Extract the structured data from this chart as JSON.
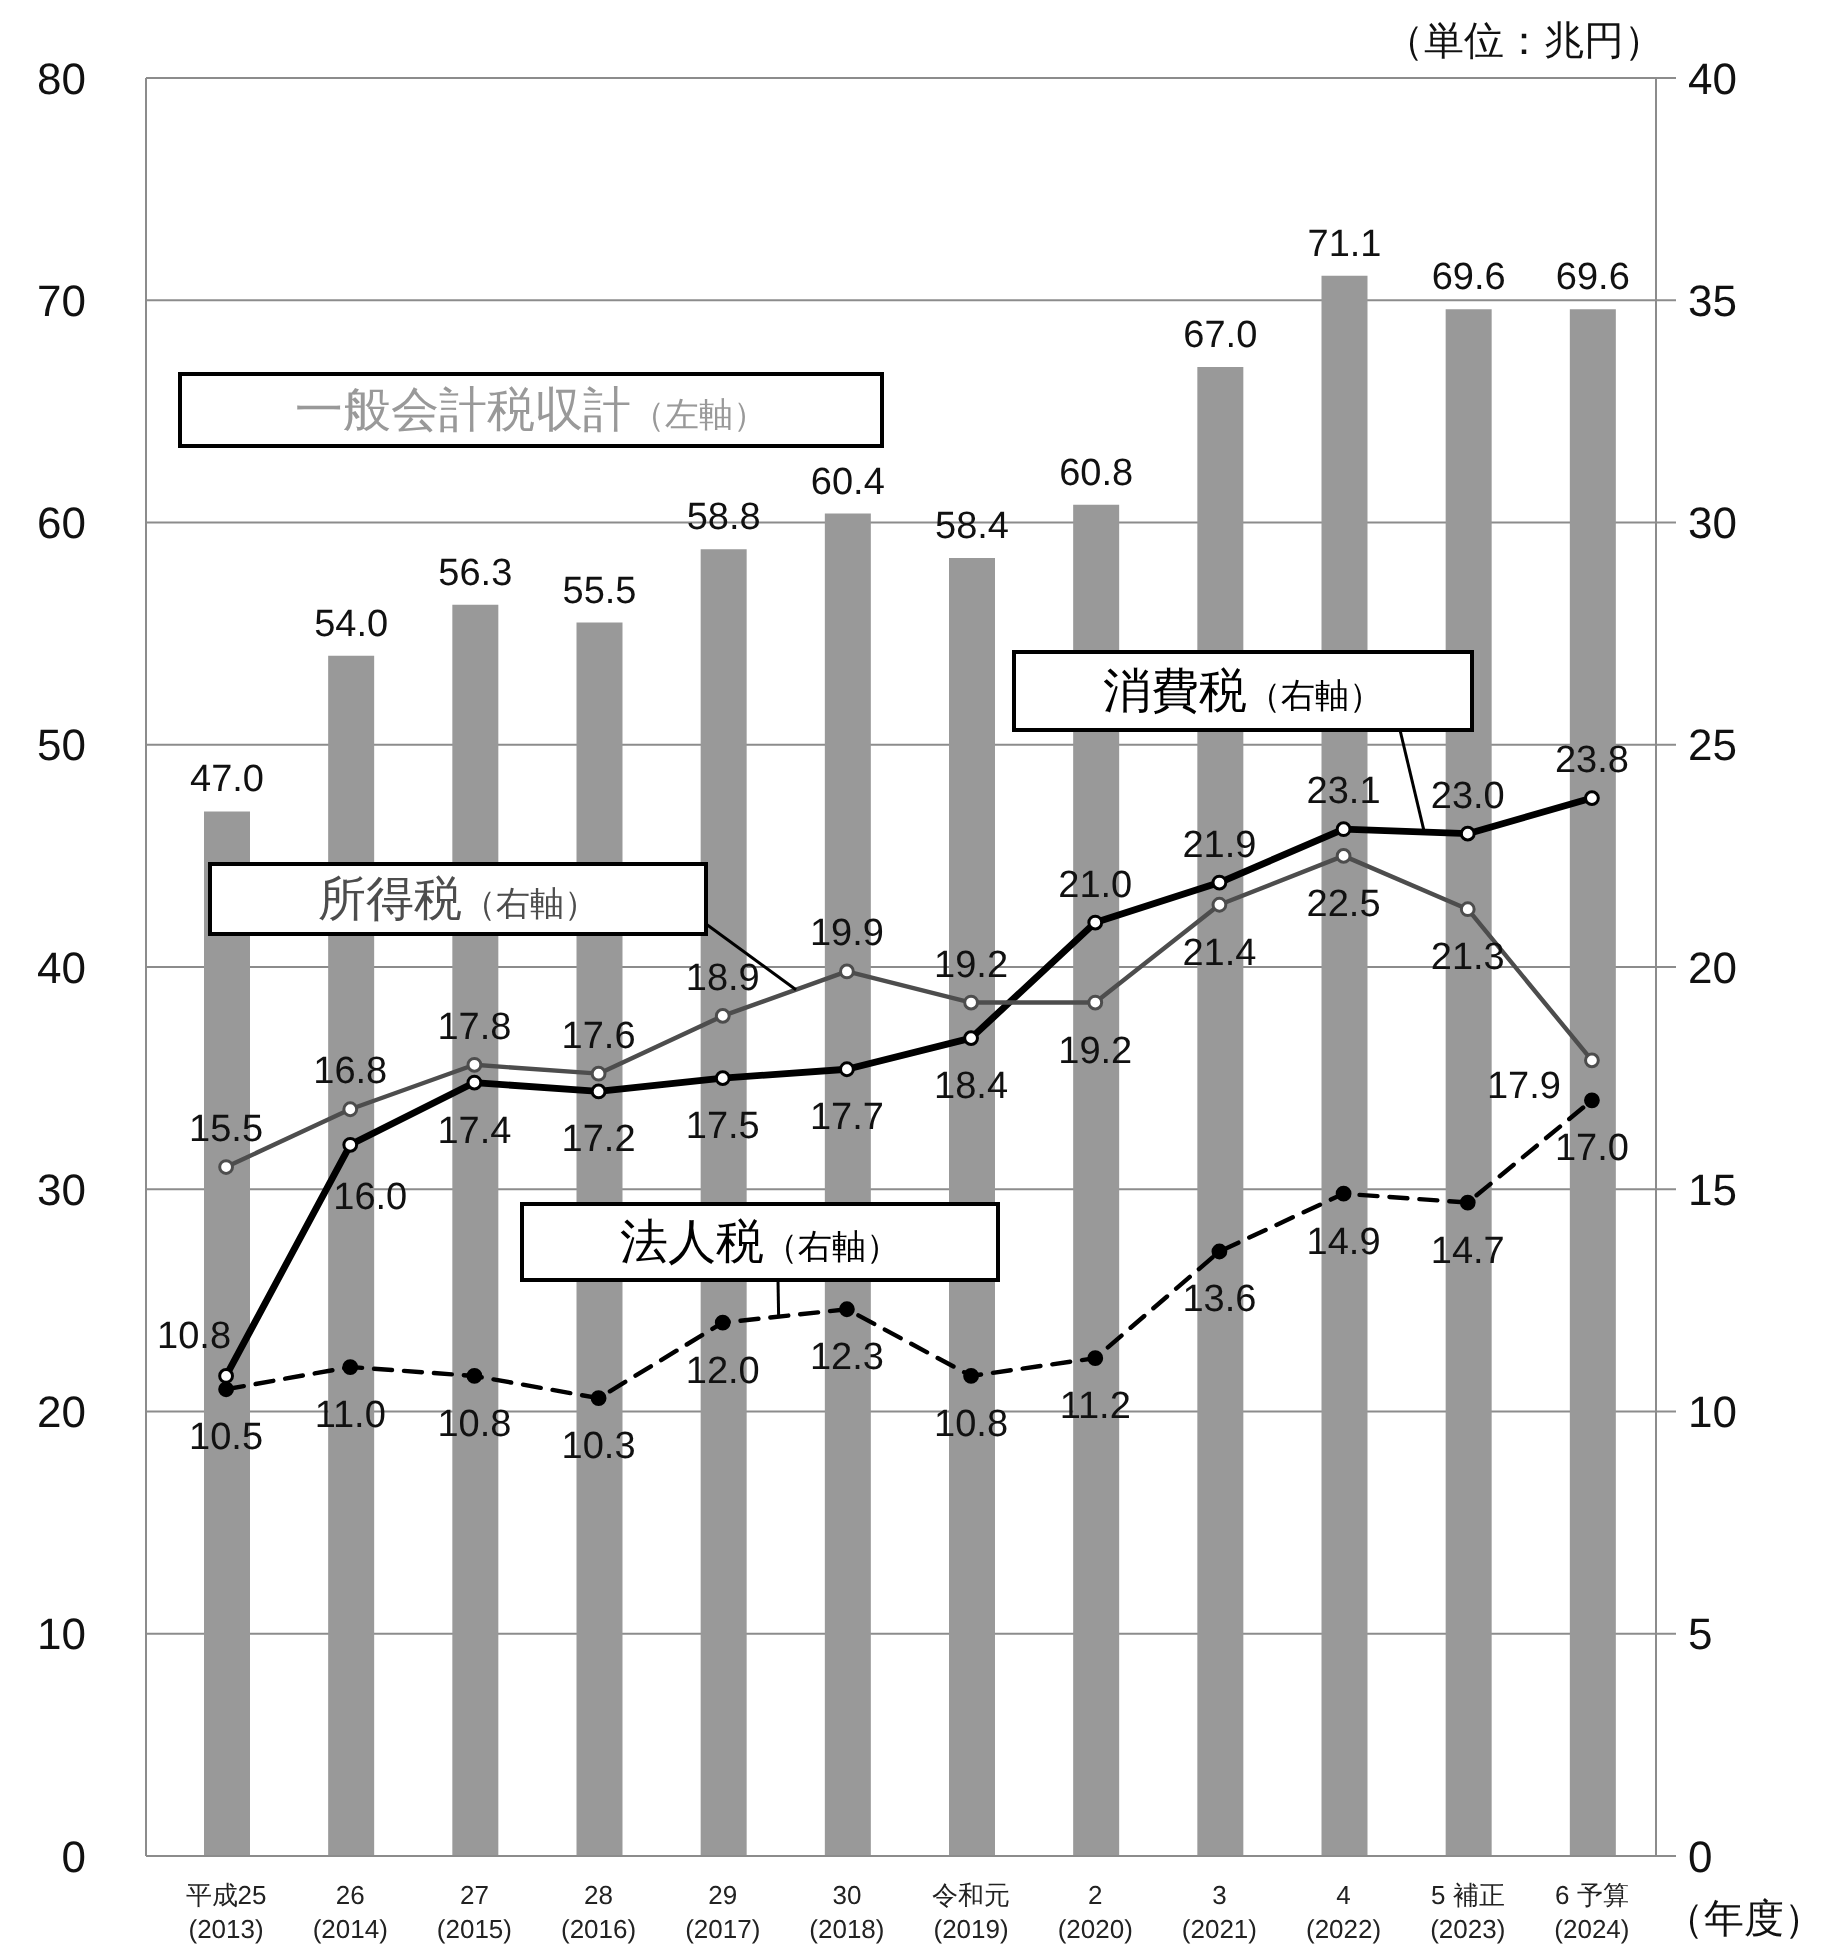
{
  "chart_data": {
    "type": "bar",
    "categories": [
      "平成25\n(2013)",
      "26\n(2014)",
      "27\n(2015)",
      "28\n(2016)",
      "29\n(2017)",
      "30\n(2018)",
      "令和元\n(2019)",
      "2\n(2020)",
      "3\n(2021)",
      "4\n(2022)",
      "5 補正\n(2023)",
      "6 予算\n(2024)"
    ],
    "series": [
      {
        "name": "一般会計税収計（左軸）",
        "color": "#999999",
        "values": [
          47.0,
          54.0,
          56.3,
          55.5,
          58.8,
          60.4,
          58.4,
          60.8,
          67.0,
          71.1,
          69.6,
          69.6
        ],
        "value_labels": [
          "47.0",
          "54.0",
          "56.3",
          "55.5",
          "58.8",
          "60.4",
          "58.4",
          "60.8",
          "67.0",
          "71.1",
          "69.6",
          "69.6"
        ]
      },
      {
        "name": "消費税（右軸）",
        "type": "line",
        "axis": "y2",
        "color": "#000000",
        "values": [
          10.8,
          16.0,
          17.4,
          17.2,
          17.5,
          17.7,
          18.4,
          21.0,
          21.9,
          23.1,
          23.0,
          23.8
        ],
        "value_labels": [
          "10.8",
          "16.0",
          "17.4",
          "17.2",
          "17.5",
          "17.7",
          "18.4",
          "21.0",
          "21.9",
          "23.1",
          "23.0",
          "23.8"
        ]
      },
      {
        "name": "所得税（右軸）",
        "type": "line",
        "axis": "y2",
        "color": "#4d4d4d",
        "values": [
          15.5,
          16.8,
          17.8,
          17.6,
          18.9,
          19.9,
          19.2,
          19.2,
          21.4,
          22.5,
          21.3,
          17.9
        ],
        "value_labels": [
          "15.5",
          "16.8",
          "17.8",
          "17.6",
          "18.9",
          "19.9",
          "19.2",
          "19.2",
          "21.4",
          "22.5",
          "21.3",
          "17.9"
        ]
      },
      {
        "name": "法人税（右軸）",
        "type": "line",
        "axis": "y2",
        "color": "#000000",
        "line_style": "dashed",
        "values": [
          10.5,
          11.0,
          10.8,
          10.3,
          12.0,
          12.3,
          10.8,
          11.2,
          13.6,
          14.9,
          14.7,
          17.0
        ],
        "value_labels": [
          "10.5",
          "11.0",
          "10.8",
          "10.3",
          "12.0",
          "12.3",
          "10.8",
          "11.2",
          "13.6",
          "14.9",
          "14.7",
          "17.0"
        ]
      }
    ],
    "ylim": [
      0,
      80
    ],
    "yticks": [
      0,
      10,
      20,
      30,
      40,
      50,
      60,
      70,
      80
    ],
    "y2lim": [
      0,
      40
    ],
    "y2ticks": [
      0,
      5,
      10,
      15,
      20,
      25,
      30,
      35,
      40
    ],
    "grid": "y",
    "marker": "circle",
    "line_style": "solid",
    "annotations": [
      "（単位：兆円）",
      "（年度）"
    ]
  }
}
